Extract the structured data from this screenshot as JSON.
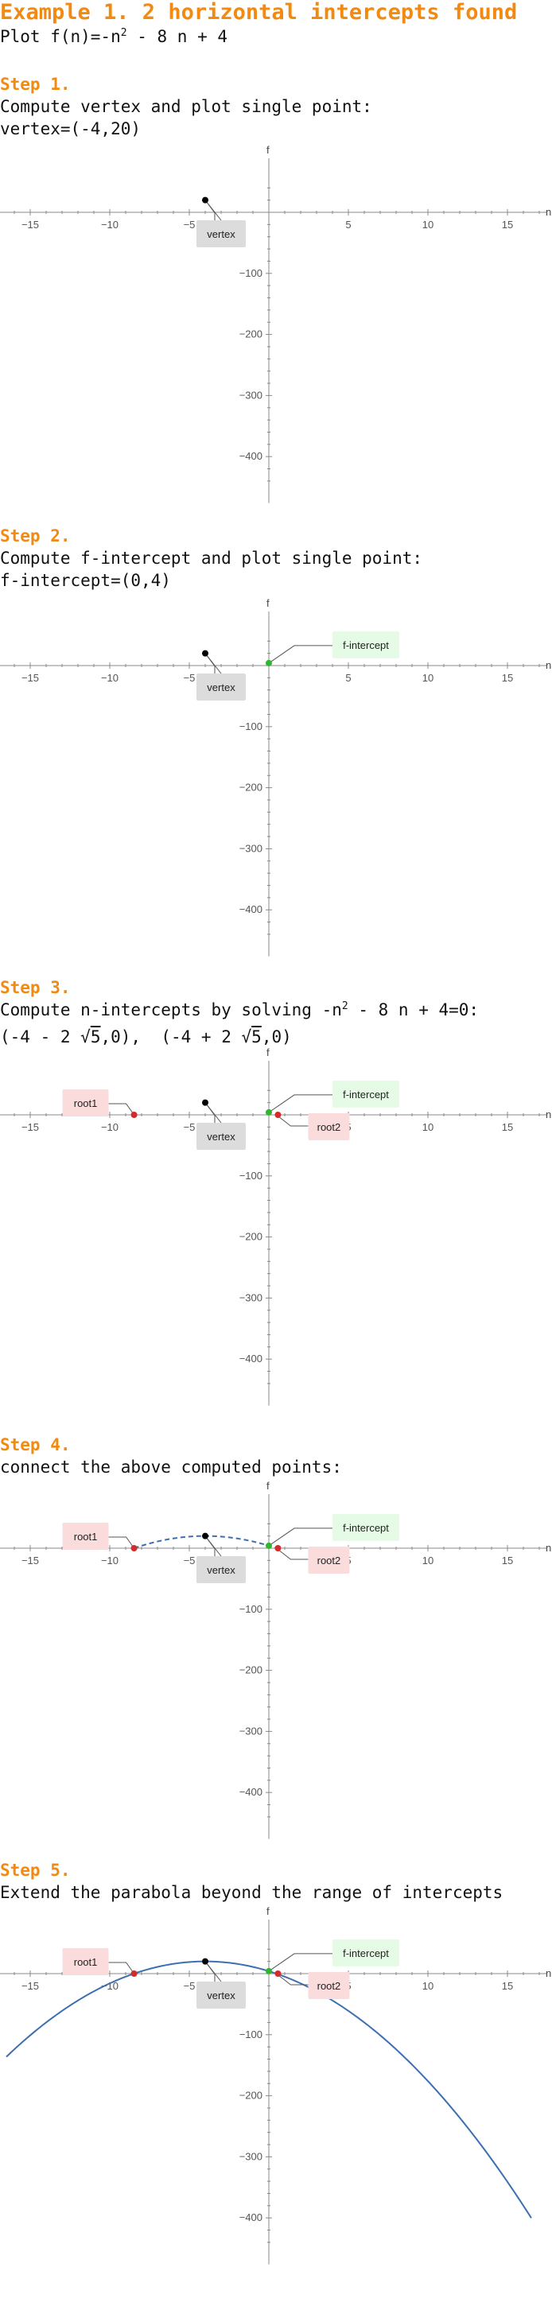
{
  "title": "Example 1. 2 horizontal intercepts found",
  "plot_line": {
    "prefix": "Plot ",
    "expr": "f(n)=-n",
    "exp": "2",
    "rest": " - 8 n + 4"
  },
  "axis": {
    "x_name": "n",
    "y_name": "f",
    "x_ticks": [
      "-15",
      "-10",
      "-5",
      "5",
      "10",
      "15"
    ],
    "y_ticks": [
      "-100",
      "-200",
      "-300",
      "-400"
    ]
  },
  "labels": {
    "vertex": "vertex",
    "f_intercept": "f-intercept",
    "root1": "root1",
    "root2": "root2"
  },
  "colors": {
    "accent": "#f28a12",
    "vertex_box": "#dcdcdc",
    "f_box": "#e6fbe6",
    "root_box": "#fbdcdc",
    "curve": "#3d6fb0",
    "point_black": "#000000",
    "point_green": "#2fb52f",
    "point_red": "#d42a2a"
  },
  "steps": [
    {
      "heading": "Step 1.",
      "line1": "Compute vertex and plot single point:",
      "line2": "vertex=(-4,20)"
    },
    {
      "heading": "Step 2.",
      "line1": "Compute f-intercept and plot single point:",
      "line2": "f-intercept=(0,4)"
    },
    {
      "heading": "Step 3.",
      "line1_a": "Compute n-intercepts by solving -n",
      "line1_exp": "2",
      "line1_b": " - 8 n + 4=0:",
      "root_a": "(-4 - 2 ",
      "root_a_rad": "5",
      "root_a_end": ",0),",
      "root_b": "(-4 + 2 ",
      "root_b_rad": "5",
      "root_b_end": ",0)"
    },
    {
      "heading": "Step 4.",
      "line1": "connect the above computed points:"
    },
    {
      "heading": "Step 5.",
      "line1": "Extend the parabola beyond the range of intercepts"
    }
  ],
  "chart_data": {
    "type": "line",
    "function": "f(n) = -n^2 - 8n + 4",
    "xlabel": "n",
    "ylabel": "f",
    "x_ticks": [
      -15,
      -10,
      -5,
      5,
      10,
      15
    ],
    "y_ticks": [
      -100,
      -200,
      -300,
      -400
    ],
    "points": {
      "vertex": [
        -4,
        20
      ],
      "f_intercept": [
        0,
        4
      ],
      "root1": [
        -8.472,
        0
      ],
      "root2": [
        0.472,
        0
      ]
    },
    "step5_domain": [
      -16.5,
      16.5
    ]
  }
}
